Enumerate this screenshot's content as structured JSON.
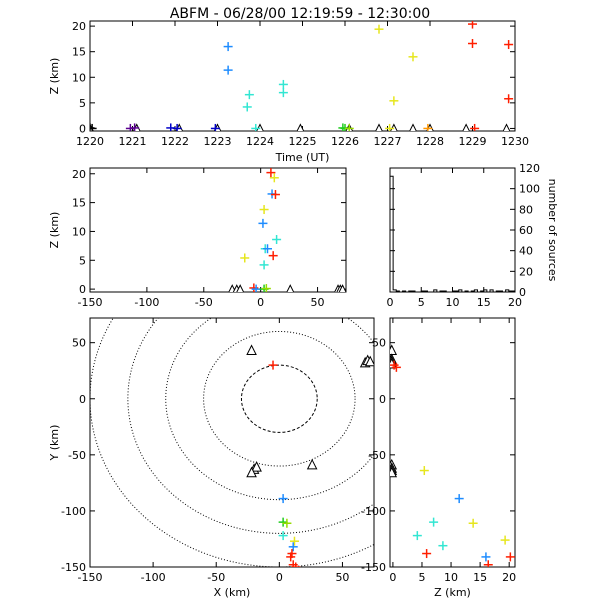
{
  "title": "ABFM - 06/28/00 12:19:59 - 12:30:00",
  "colors": {
    "palette": [
      "#000000",
      "#5a0090",
      "#0000c8",
      "#1e8cff",
      "#32e6d2",
      "#1ecc1e",
      "#96dc00",
      "#e6e61e",
      "#ff9600",
      "#ff1e00"
    ],
    "station": "#000000",
    "range_ring": "#000000",
    "histogram": "#000000"
  },
  "chart_data": [
    {
      "id": "time_height",
      "type": "scatter",
      "xlabel": "Time (UT)",
      "ylabel": "Z (km)",
      "xlim": [
        1220,
        1230
      ],
      "ylim": [
        -0.5,
        21
      ],
      "x_ticks": [
        "1220",
        "1221",
        "1222",
        "1223",
        "1224",
        "1225",
        "1226",
        "1227",
        "1228",
        "1229",
        "1230"
      ],
      "y_ticks": [
        "0",
        "5",
        "10",
        "15",
        "20"
      ],
      "points": [
        {
          "x": 1220.0,
          "y": 0.1,
          "c": 0
        },
        {
          "x": 1220.05,
          "y": 0.0,
          "c": 0
        },
        {
          "x": 1220.95,
          "y": 0.0,
          "c": 1
        },
        {
          "x": 1221.05,
          "y": 0.1,
          "c": 1
        },
        {
          "x": 1221.9,
          "y": 0.1,
          "c": 2
        },
        {
          "x": 1222.05,
          "y": 0.0,
          "c": 2
        },
        {
          "x": 1222.95,
          "y": 0.0,
          "c": 2
        },
        {
          "x": 1223.25,
          "y": 16.0,
          "c": 3
        },
        {
          "x": 1223.25,
          "y": 11.4,
          "c": 3
        },
        {
          "x": 1223.75,
          "y": 6.6,
          "c": 4
        },
        {
          "x": 1223.7,
          "y": 4.2,
          "c": 4
        },
        {
          "x": 1223.9,
          "y": 0.0,
          "c": 4
        },
        {
          "x": 1224.55,
          "y": 8.6,
          "c": 4
        },
        {
          "x": 1224.55,
          "y": 7.0,
          "c": 4
        },
        {
          "x": 1225.95,
          "y": 0.1,
          "c": 5
        },
        {
          "x": 1226.0,
          "y": 0.0,
          "c": 5
        },
        {
          "x": 1226.1,
          "y": 0.0,
          "c": 6
        },
        {
          "x": 1226.8,
          "y": 19.4,
          "c": 7
        },
        {
          "x": 1227.05,
          "y": 0.0,
          "c": 7
        },
        {
          "x": 1227.15,
          "y": 5.4,
          "c": 7
        },
        {
          "x": 1227.6,
          "y": 14.0,
          "c": 7
        },
        {
          "x": 1227.95,
          "y": 0.0,
          "c": 8
        },
        {
          "x": 1229.0,
          "y": 20.4,
          "c": 9
        },
        {
          "x": 1229.0,
          "y": 16.6,
          "c": 9
        },
        {
          "x": 1229.05,
          "y": 0.0,
          "c": 9
        },
        {
          "x": 1229.85,
          "y": 16.4,
          "c": 9
        },
        {
          "x": 1229.85,
          "y": 5.8,
          "c": 9
        }
      ],
      "stations": [
        {
          "x": 1220.0,
          "y": -0.2
        },
        {
          "x": 1221.1,
          "y": -0.2
        },
        {
          "x": 1222.1,
          "y": -0.2
        },
        {
          "x": 1223.0,
          "y": -0.2
        },
        {
          "x": 1224.0,
          "y": -0.2
        },
        {
          "x": 1224.95,
          "y": -0.2
        },
        {
          "x": 1226.1,
          "y": -0.2
        },
        {
          "x": 1226.8,
          "y": -0.2
        },
        {
          "x": 1227.15,
          "y": -0.2
        },
        {
          "x": 1227.6,
          "y": -0.2
        },
        {
          "x": 1228.0,
          "y": -0.2
        },
        {
          "x": 1228.85,
          "y": -0.2
        },
        {
          "x": 1229.8,
          "y": -0.2
        }
      ]
    },
    {
      "id": "x_height",
      "type": "scatter",
      "xlabel": "",
      "ylabel": "Z (km)",
      "xlim": [
        -150,
        75
      ],
      "ylim": [
        -0.5,
        21
      ],
      "x_ticks": [
        "-150",
        "-100",
        "-50",
        "0",
        "50"
      ],
      "y_ticks": [
        "0",
        "5",
        "10",
        "15",
        "20"
      ],
      "points": [
        {
          "x": 9,
          "y": 20.2,
          "c": 9
        },
        {
          "x": 12,
          "y": 19.3,
          "c": 7
        },
        {
          "x": 10,
          "y": 16.5,
          "c": 3
        },
        {
          "x": 13,
          "y": 16.4,
          "c": 9
        },
        {
          "x": 3,
          "y": 13.8,
          "c": 7
        },
        {
          "x": 2,
          "y": 11.4,
          "c": 3
        },
        {
          "x": 14,
          "y": 8.6,
          "c": 4
        },
        {
          "x": 4,
          "y": 7.0,
          "c": 4
        },
        {
          "x": 6,
          "y": 7.0,
          "c": 3
        },
        {
          "x": 11,
          "y": 5.8,
          "c": 9
        },
        {
          "x": -14,
          "y": 5.4,
          "c": 7
        },
        {
          "x": 3,
          "y": 4.2,
          "c": 4
        },
        {
          "x": -6,
          "y": 0.2,
          "c": 9
        },
        {
          "x": -4,
          "y": 0.0,
          "c": 3
        },
        {
          "x": 3,
          "y": 0.0,
          "c": 5
        },
        {
          "x": 5,
          "y": 0.1,
          "c": 6
        }
      ],
      "stations": [
        {
          "x": -25,
          "y": -0.2
        },
        {
          "x": -21,
          "y": -0.2
        },
        {
          "x": -18,
          "y": -0.2
        },
        {
          "x": 26,
          "y": -0.2
        },
        {
          "x": 68,
          "y": -0.2
        },
        {
          "x": 70,
          "y": -0.2
        },
        {
          "x": 72,
          "y": -0.2
        }
      ]
    },
    {
      "id": "height_histogram",
      "type": "bar",
      "xlabel": "",
      "ylabel": "number of sources",
      "xlim": [
        0,
        20
      ],
      "ylim": [
        0,
        120
      ],
      "x_ticks": [
        "0",
        "5",
        "10",
        "15",
        "20"
      ],
      "y_ticks": [
        "0",
        "20",
        "40",
        "60",
        "80",
        "100",
        "120"
      ],
      "bin_width": 0.5,
      "values": [
        112,
        2,
        1,
        0,
        1,
        0,
        1,
        1,
        0,
        0,
        1,
        1,
        0,
        0,
        2,
        0,
        1,
        1,
        0,
        0,
        1,
        1,
        2,
        0,
        1,
        0,
        1,
        2,
        0,
        1,
        2,
        0,
        2,
        0,
        1,
        1,
        0,
        2,
        1,
        1
      ]
    },
    {
      "id": "plan_view",
      "type": "scatter",
      "xlabel": "X (km)",
      "ylabel": "Y (km)",
      "xlim": [
        -150,
        75
      ],
      "ylim": [
        -150,
        72
      ],
      "x_ticks": [
        "-150",
        "-100",
        "-50",
        "0",
        "50"
      ],
      "y_ticks": [
        "-150",
        "-100",
        "-50",
        "0",
        "50"
      ],
      "range_rings_km": [
        30,
        60,
        90,
        120,
        150
      ],
      "points": [
        {
          "x": -5,
          "y": 30,
          "c": 9
        },
        {
          "x": 3,
          "y": -89,
          "c": 3
        },
        {
          "x": 3,
          "y": -110,
          "c": 5
        },
        {
          "x": 6,
          "y": -111,
          "c": 6
        },
        {
          "x": 3,
          "y": -122,
          "c": 4
        },
        {
          "x": 12,
          "y": -127,
          "c": 7
        },
        {
          "x": 11,
          "y": -132,
          "c": 3
        },
        {
          "x": 10,
          "y": -138,
          "c": 9
        },
        {
          "x": 9,
          "y": -141,
          "c": 9
        },
        {
          "x": 11,
          "y": -148,
          "c": 9
        },
        {
          "x": 13,
          "y": -150,
          "c": 9
        }
      ],
      "stations": [
        {
          "x": -22,
          "y": 43
        },
        {
          "x": 68,
          "y": 32
        },
        {
          "x": 70,
          "y": 34
        },
        {
          "x": 72,
          "y": 33
        },
        {
          "x": -20,
          "y": -63
        },
        {
          "x": -18,
          "y": -61
        },
        {
          "x": -22,
          "y": -66
        },
        {
          "x": 26,
          "y": -59
        }
      ]
    },
    {
      "id": "height_y",
      "type": "scatter",
      "xlabel": "Z (km)",
      "ylabel": "",
      "xlim": [
        -0.5,
        21
      ],
      "ylim": [
        -150,
        72
      ],
      "x_ticks": [
        "0",
        "5",
        "10",
        "15",
        "20"
      ],
      "y_ticks": [
        "-150",
        "-100",
        "-50",
        "0",
        "50"
      ],
      "points": [
        {
          "x": 0.2,
          "y": 30,
          "c": 9
        },
        {
          "x": 0.6,
          "y": 28,
          "c": 9
        },
        {
          "x": 5.4,
          "y": -64,
          "c": 7
        },
        {
          "x": 11.4,
          "y": -89,
          "c": 3
        },
        {
          "x": 7.0,
          "y": -110,
          "c": 4
        },
        {
          "x": 13.8,
          "y": -111,
          "c": 7
        },
        {
          "x": 4.2,
          "y": -122,
          "c": 4
        },
        {
          "x": 8.6,
          "y": -131,
          "c": 4
        },
        {
          "x": 5.8,
          "y": -138,
          "c": 9
        },
        {
          "x": 19.3,
          "y": -126,
          "c": 7
        },
        {
          "x": 16.0,
          "y": -141,
          "c": 3
        },
        {
          "x": 20.2,
          "y": -141,
          "c": 9
        },
        {
          "x": 16.4,
          "y": -148,
          "c": 9
        }
      ],
      "stations": [
        {
          "x": -0.2,
          "y": 43
        },
        {
          "x": -0.2,
          "y": 35
        },
        {
          "x": -0.2,
          "y": 33
        },
        {
          "x": -0.2,
          "y": 31
        },
        {
          "x": -0.2,
          "y": -59
        },
        {
          "x": -0.2,
          "y": -62
        },
        {
          "x": -0.2,
          "y": -64
        },
        {
          "x": -0.2,
          "y": -66
        }
      ]
    }
  ]
}
